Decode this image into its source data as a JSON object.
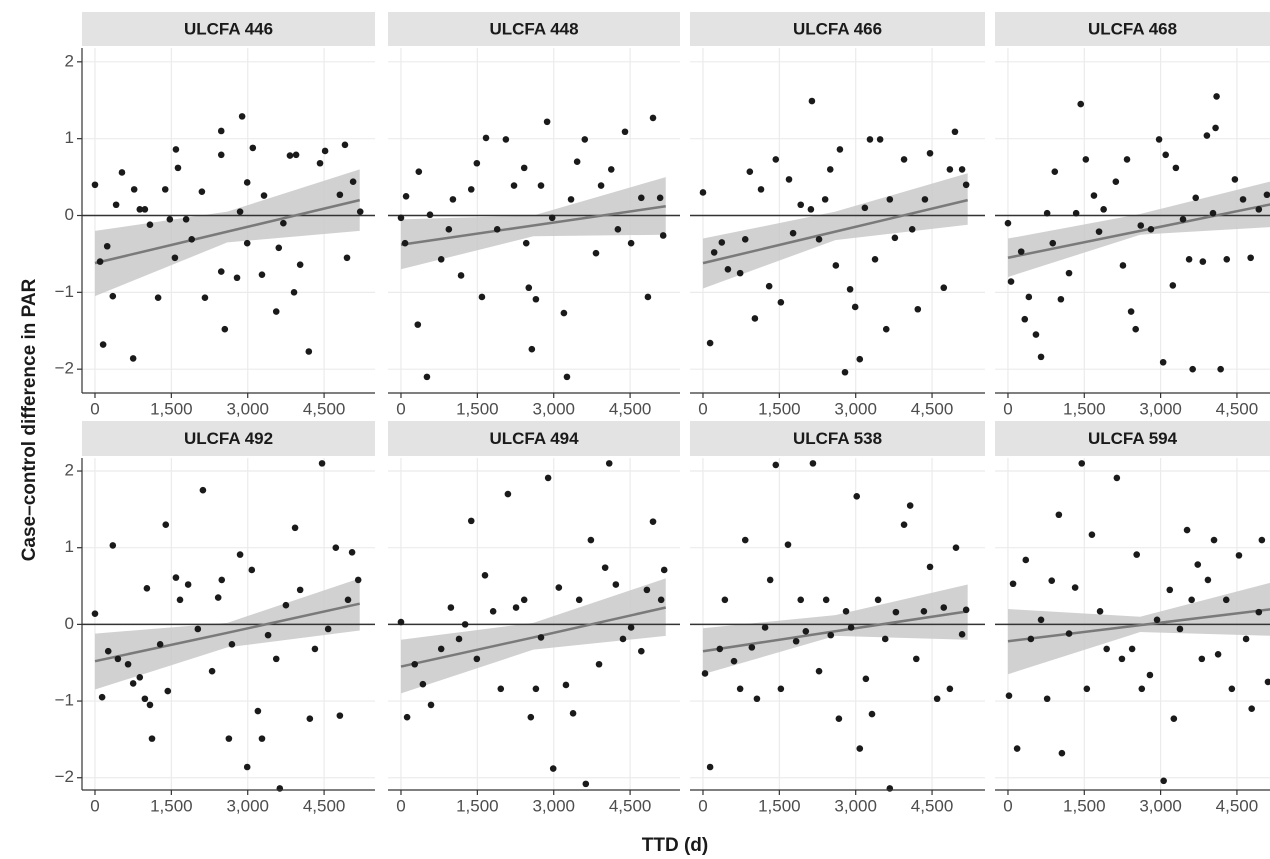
{
  "ylabel": "Case–control difference in PAR",
  "xlabel": "TTD (d)",
  "chart_data": [
    {
      "type": "scatter",
      "title": "ULCFA 446",
      "color": "#1a1a1a",
      "grid": true,
      "hline": 0,
      "y_tick_labels": true,
      "xlim": [
        -255,
        5500
      ],
      "ylim": [
        -2.31,
        2.18
      ],
      "xticks": [
        0,
        {
          "value": 1500,
          "label": "1,500"
        },
        {
          "value": 3000,
          "label": "3,000"
        },
        {
          "value": 4500,
          "label": "4,500"
        }
      ],
      "yticks": [
        {
          "value": -2,
          "label": "−2"
        },
        {
          "value": -1,
          "label": "−1"
        },
        0,
        1,
        2
      ],
      "x": [
        0,
        100,
        160,
        415,
        530,
        240,
        350,
        770,
        750,
        880,
        980,
        1080,
        1240,
        1380,
        1590,
        1630,
        1570,
        1470,
        1900,
        2100,
        2160,
        2480,
        2480,
        2550,
        2480,
        2790,
        2850,
        2890,
        2990,
        2990,
        3100,
        3280,
        3320,
        3560,
        3610,
        3830,
        3910,
        3950,
        4030,
        4200,
        4420,
        4520,
        4810,
        4910,
        4950,
        5070,
        5210,
        3700,
        1790
      ],
      "y": [
        0.4,
        -0.6,
        -1.68,
        0.14,
        0.56,
        -0.4,
        -1.05,
        0.34,
        -1.86,
        0.08,
        0.08,
        -0.12,
        -1.07,
        0.34,
        0.86,
        0.62,
        -0.55,
        -0.05,
        -0.31,
        0.31,
        -1.07,
        1.1,
        0.79,
        -1.48,
        -0.73,
        -0.81,
        0.05,
        1.29,
        0.43,
        -0.36,
        0.88,
        -0.77,
        0.26,
        -1.25,
        -0.42,
        0.78,
        -1.0,
        0.79,
        -0.64,
        -1.77,
        0.68,
        0.84,
        0.27,
        0.92,
        -0.55,
        0.44,
        0.05,
        -0.1,
        -0.05
      ],
      "fit": {
        "x": [
          0,
          2600,
          5200
        ],
        "y": [
          -0.62,
          -0.21,
          0.2
        ],
        "lower": [
          -1.05,
          -0.35,
          -0.2
        ],
        "upper": [
          -0.2,
          0.05,
          0.6
        ]
      },
      "fit_color": "#7a7a7a",
      "band_color": "#c9c9c9"
    },
    {
      "type": "scatter",
      "title": "ULCFA 448",
      "color": "#1a1a1a",
      "grid": true,
      "hline": 0,
      "y_tick_labels": false,
      "xlim": [
        -255,
        5480
      ],
      "ylim": [
        -2.31,
        2.18
      ],
      "xticks": [
        0,
        {
          "value": 1500,
          "label": "1,500"
        },
        {
          "value": 3000,
          "label": "3,000"
        },
        {
          "value": 4500,
          "label": "4,500"
        }
      ],
      "yticks": [
        {
          "value": -2,
          "label": "−2"
        },
        {
          "value": -1,
          "label": "−1"
        },
        0,
        1,
        2
      ],
      "x": [
        0,
        80,
        100,
        350,
        330,
        570,
        510,
        790,
        940,
        1020,
        1180,
        1380,
        1490,
        1590,
        1670,
        1890,
        2060,
        2220,
        2420,
        2460,
        2510,
        2570,
        2650,
        2750,
        2870,
        2970,
        3200,
        3260,
        3340,
        3460,
        3610,
        3830,
        3930,
        4130,
        4260,
        4400,
        4520,
        4720,
        4850,
        4950,
        5090,
        5150
      ],
      "y": [
        -0.03,
        -0.36,
        0.25,
        0.57,
        -1.42,
        0.01,
        -2.1,
        -0.57,
        -0.18,
        0.21,
        -0.78,
        0.34,
        0.68,
        -1.06,
        1.01,
        -0.18,
        0.99,
        0.39,
        0.62,
        -0.36,
        -0.94,
        -1.74,
        -1.09,
        0.39,
        1.22,
        -0.03,
        -1.27,
        -2.1,
        0.21,
        0.7,
        0.99,
        -0.49,
        0.39,
        0.6,
        -0.18,
        1.09,
        -0.36,
        0.23,
        -1.06,
        1.27,
        0.23,
        -0.26
      ],
      "fit": {
        "x": [
          0,
          2600,
          5200
        ],
        "y": [
          -0.38,
          -0.13,
          0.12
        ],
        "lower": [
          -0.7,
          -0.27,
          -0.25
        ],
        "upper": [
          -0.05,
          0,
          0.5
        ]
      },
      "fit_color": "#7a7a7a",
      "band_color": "#c9c9c9"
    },
    {
      "type": "scatter",
      "title": "ULCFA 466",
      "color": "#1a1a1a",
      "grid": true,
      "hline": 0,
      "y_tick_labels": false,
      "xlim": [
        -255,
        5540
      ],
      "ylim": [
        -2.31,
        2.18
      ],
      "xticks": [
        0,
        {
          "value": 1500,
          "label": "1,500"
        },
        {
          "value": 3000,
          "label": "3,000"
        },
        {
          "value": 4500,
          "label": "4,500"
        }
      ],
      "yticks": [
        {
          "value": -2,
          "label": "−2"
        },
        {
          "value": -1,
          "label": "−1"
        },
        0,
        1,
        2
      ],
      "x": [
        0,
        140,
        220,
        370,
        490,
        730,
        830,
        920,
        1020,
        1140,
        1300,
        1430,
        1530,
        1690,
        1770,
        1920,
        2120,
        2280,
        2400,
        2500,
        2610,
        2690,
        2790,
        2890,
        2990,
        3080,
        3180,
        3280,
        3380,
        3480,
        3600,
        3670,
        3770,
        3950,
        4110,
        4220,
        4360,
        4460,
        4730,
        4850,
        4950,
        5090,
        5170,
        2140
      ],
      "y": [
        0.3,
        -1.66,
        -0.48,
        -0.35,
        -0.7,
        -0.75,
        -0.31,
        0.57,
        -1.34,
        0.34,
        -0.92,
        0.73,
        -1.13,
        0.47,
        -0.23,
        0.14,
        0.08,
        -0.31,
        0.21,
        0.6,
        -0.65,
        0.86,
        -2.04,
        -0.96,
        -1.19,
        -1.87,
        0.1,
        0.99,
        -0.57,
        0.99,
        -1.48,
        0.21,
        -0.29,
        0.73,
        -0.18,
        -1.22,
        0.21,
        0.81,
        -0.94,
        0.6,
        1.09,
        0.6,
        0.4,
        1.49
      ],
      "fit": {
        "x": [
          0,
          2600,
          5200
        ],
        "y": [
          -0.62,
          -0.21,
          0.2
        ],
        "lower": [
          -0.95,
          -0.32,
          -0.12
        ],
        "upper": [
          -0.3,
          0.05,
          0.55
        ]
      },
      "fit_color": "#7a7a7a",
      "band_color": "#c9c9c9"
    },
    {
      "type": "scatter",
      "title": "ULCFA 468",
      "color": "#1a1a1a",
      "grid": true,
      "hline": 0,
      "y_tick_labels": false,
      "xlim": [
        -255,
        5150
      ],
      "ylim": [
        -2.31,
        2.18
      ],
      "xticks": [
        0,
        {
          "value": 1500,
          "label": "1,500"
        },
        {
          "value": 3000,
          "label": "3,000"
        },
        {
          "value": 4500,
          "label": "4,500"
        }
      ],
      "yticks": [
        {
          "value": -2,
          "label": "−2"
        },
        {
          "value": -1,
          "label": "−1"
        },
        0,
        1,
        2
      ],
      "x": [
        0,
        60,
        260,
        330,
        410,
        550,
        650,
        770,
        880,
        920,
        1040,
        1200,
        1340,
        1430,
        1530,
        1690,
        1790,
        1880,
        2120,
        2260,
        2340,
        2420,
        2510,
        2610,
        2810,
        2970,
        3050,
        3100,
        3240,
        3300,
        3440,
        3560,
        3630,
        3690,
        3830,
        3910,
        4030,
        4080,
        4180,
        4300,
        4460,
        4620,
        4770,
        4930,
        5090,
        4100
      ],
      "y": [
        -0.1,
        -0.86,
        -0.47,
        -1.35,
        -1.06,
        -1.55,
        -1.84,
        0.03,
        -0.36,
        0.57,
        -1.09,
        -0.75,
        0.03,
        1.45,
        0.73,
        0.26,
        -0.21,
        0.08,
        0.44,
        -0.65,
        0.73,
        -1.25,
        -1.48,
        -0.13,
        -0.18,
        0.99,
        -1.91,
        0.79,
        -0.91,
        0.62,
        -0.05,
        -0.57,
        -2.0,
        0.23,
        -0.6,
        1.04,
        0.03,
        1.14,
        -2.0,
        -0.57,
        0.47,
        0.21,
        -0.55,
        0.08,
        0.27,
        1.55
      ],
      "fit": {
        "x": [
          0,
          2600,
          5200
        ],
        "y": [
          -0.55,
          -0.2,
          0.15
        ],
        "lower": [
          -0.8,
          -0.25,
          -0.15
        ],
        "upper": [
          -0.3,
          0.02,
          0.45
        ]
      },
      "fit_color": "#7a7a7a",
      "band_color": "#c9c9c9"
    },
    {
      "type": "scatter",
      "title": "ULCFA 492",
      "color": "#1a1a1a",
      "grid": true,
      "hline": 0,
      "y_tick_labels": true,
      "xlim": [
        -255,
        5500
      ],
      "ylim": [
        -2.16,
        2.17
      ],
      "xticks": [
        0,
        {
          "value": 1500,
          "label": "1,500"
        },
        {
          "value": 3000,
          "label": "3,000"
        },
        {
          "value": 4500,
          "label": "4,500"
        }
      ],
      "yticks": [
        {
          "value": -2,
          "label": "−2"
        },
        {
          "value": -1,
          "label": "−1"
        },
        0,
        1,
        2
      ],
      "x": [
        0,
        140,
        350,
        260,
        450,
        650,
        750,
        880,
        980,
        1080,
        1120,
        1020,
        1280,
        1390,
        1430,
        1590,
        1670,
        1830,
        2020,
        2120,
        2300,
        2420,
        2490,
        2630,
        2690,
        2850,
        2990,
        3080,
        3200,
        3280,
        3400,
        3560,
        3630,
        3750,
        3930,
        4030,
        4220,
        4320,
        4460,
        4580,
        4730,
        4810,
        4970,
        5050,
        5170
      ],
      "y": [
        0.14,
        -0.95,
        1.03,
        -0.35,
        -0.45,
        -0.52,
        -0.77,
        -0.69,
        -0.97,
        -1.05,
        -1.49,
        0.47,
        -0.26,
        1.3,
        -0.87,
        0.61,
        0.32,
        0.52,
        -0.06,
        1.75,
        -0.61,
        0.35,
        0.58,
        -1.49,
        -0.26,
        0.91,
        -1.86,
        0.71,
        -1.13,
        -1.49,
        -0.14,
        -0.45,
        -2.14,
        0.25,
        1.26,
        0.45,
        -1.23,
        -0.32,
        2.1,
        -0.06,
        1.0,
        -1.19,
        0.32,
        0.94,
        0.58
      ],
      "fit": {
        "x": [
          0,
          2600,
          5200
        ],
        "y": [
          -0.48,
          -0.11,
          0.27
        ],
        "lower": [
          -0.85,
          -0.3,
          -0.08
        ],
        "upper": [
          -0.12,
          0.02,
          0.6
        ]
      },
      "fit_color": "#7a7a7a",
      "band_color": "#c9c9c9"
    },
    {
      "type": "scatter",
      "title": "ULCFA 494",
      "color": "#1a1a1a",
      "grid": true,
      "hline": 0,
      "y_tick_labels": false,
      "xlim": [
        -255,
        5480
      ],
      "ylim": [
        -2.16,
        2.17
      ],
      "xticks": [
        0,
        {
          "value": 1500,
          "label": "1,500"
        },
        {
          "value": 3000,
          "label": "3,000"
        },
        {
          "value": 4500,
          "label": "4,500"
        }
      ],
      "yticks": [
        {
          "value": -2,
          "label": "−2"
        },
        {
          "value": -1,
          "label": "−1"
        },
        0,
        1,
        2
      ],
      "x": [
        0,
        120,
        270,
        430,
        590,
        790,
        980,
        1140,
        1260,
        1380,
        1490,
        1650,
        1810,
        1960,
        2100,
        2260,
        2420,
        2550,
        2650,
        2750,
        2890,
        2990,
        3100,
        3240,
        3380,
        3500,
        3630,
        3730,
        3890,
        4010,
        4090,
        4220,
        4360,
        4520,
        4720,
        4830,
        4950,
        5110,
        5170
      ],
      "y": [
        0.03,
        -1.21,
        -0.52,
        -0.78,
        -1.05,
        -0.32,
        0.22,
        -0.19,
        0,
        1.35,
        -0.45,
        0.64,
        0.17,
        -0.84,
        1.7,
        0.22,
        0.32,
        -1.21,
        -0.84,
        -0.17,
        1.91,
        -1.88,
        0.48,
        -0.79,
        -1.16,
        0.32,
        -2.08,
        1.1,
        -0.52,
        0.74,
        2.1,
        0.52,
        -0.19,
        -0.04,
        -0.35,
        0.45,
        1.34,
        0.32,
        0.71
      ],
      "fit": {
        "x": [
          0,
          2600,
          5200
        ],
        "y": [
          -0.55,
          -0.17,
          0.22
        ],
        "lower": [
          -0.9,
          -0.33,
          -0.15
        ],
        "upper": [
          -0.2,
          0.02,
          0.6
        ]
      },
      "fit_color": "#7a7a7a",
      "band_color": "#c9c9c9"
    },
    {
      "type": "scatter",
      "title": "ULCFA 538",
      "color": "#1a1a1a",
      "grid": true,
      "hline": 0,
      "y_tick_labels": false,
      "xlim": [
        -255,
        5540
      ],
      "ylim": [
        -2.16,
        2.17
      ],
      "xticks": [
        0,
        {
          "value": 1500,
          "label": "1,500"
        },
        {
          "value": 3000,
          "label": "3,000"
        },
        {
          "value": 4500,
          "label": "4,500"
        }
      ],
      "yticks": [
        {
          "value": -2,
          "label": "−2"
        },
        {
          "value": -1,
          "label": "−1"
        },
        0,
        1,
        2
      ],
      "x": [
        40,
        140,
        330,
        430,
        610,
        730,
        830,
        960,
        1060,
        1220,
        1320,
        1430,
        1530,
        1670,
        1830,
        1920,
        2020,
        2160,
        2280,
        2420,
        2510,
        2670,
        2810,
        2910,
        3020,
        3080,
        3200,
        3320,
        3440,
        3580,
        3670,
        3790,
        3950,
        4070,
        4190,
        4340,
        4460,
        4600,
        4730,
        4850,
        4970,
        5090,
        5170
      ],
      "y": [
        -0.64,
        -1.86,
        -0.32,
        0.32,
        -0.48,
        -0.84,
        1.1,
        -0.3,
        -0.97,
        -0.04,
        0.58,
        2.08,
        -0.84,
        1.04,
        -0.22,
        0.32,
        -0.09,
        2.1,
        -0.61,
        0.32,
        -0.14,
        -1.23,
        0.17,
        -0.04,
        1.67,
        -1.62,
        -0.71,
        -1.17,
        0.32,
        -0.19,
        -2.14,
        0.16,
        1.3,
        1.55,
        -0.45,
        0.17,
        0.75,
        -0.97,
        0.22,
        -0.84,
        1.0,
        -0.13,
        0.19
      ],
      "fit": {
        "x": [
          0,
          2600,
          5200
        ],
        "y": [
          -0.35,
          -0.09,
          0.17
        ],
        "lower": [
          -0.65,
          -0.15,
          -0.2
        ],
        "upper": [
          -0.05,
          0.12,
          0.52
        ]
      },
      "fit_color": "#7a7a7a",
      "band_color": "#c9c9c9"
    },
    {
      "type": "scatter",
      "title": "ULCFA 594",
      "color": "#1a1a1a",
      "grid": true,
      "hline": 0,
      "y_tick_labels": false,
      "xlim": [
        -255,
        5150
      ],
      "ylim": [
        -2.16,
        2.17
      ],
      "xticks": [
        0,
        {
          "value": 1500,
          "label": "1,500"
        },
        {
          "value": 3000,
          "label": "3,000"
        },
        {
          "value": 4500,
          "label": "4,500"
        }
      ],
      "yticks": [
        {
          "value": -2,
          "label": "−2"
        },
        {
          "value": -1,
          "label": "−1"
        },
        0,
        1,
        2
      ],
      "x": [
        20,
        100,
        180,
        350,
        450,
        650,
        770,
        860,
        1000,
        1060,
        1200,
        1320,
        1450,
        1550,
        1650,
        1810,
        1940,
        2140,
        2240,
        2440,
        2530,
        2630,
        2790,
        2930,
        3060,
        3180,
        3260,
        3380,
        3520,
        3610,
        3730,
        3810,
        3930,
        4050,
        4130,
        4290,
        4400,
        4540,
        4680,
        4790,
        4930,
        4990,
        5110
      ],
      "y": [
        -0.93,
        0.53,
        -1.62,
        0.84,
        -0.19,
        0.06,
        -0.97,
        0.57,
        1.43,
        -1.68,
        -0.12,
        0.48,
        2.1,
        -0.84,
        1.17,
        0.17,
        -0.32,
        1.91,
        -0.45,
        -0.32,
        0.91,
        -0.84,
        -0.66,
        0.06,
        -2.04,
        0.45,
        -1.23,
        -0.06,
        1.23,
        0.32,
        0.78,
        -0.45,
        0.58,
        1.1,
        -0.39,
        0.32,
        -0.84,
        0.9,
        -0.19,
        -1.1,
        0.16,
        1.1,
        -0.75
      ],
      "fit": {
        "x": [
          0,
          2600,
          5200
        ],
        "y": [
          -0.22,
          -0.01,
          0.2
        ],
        "lower": [
          -0.65,
          -0.1,
          -0.15
        ],
        "upper": [
          0.2,
          0.1,
          0.55
        ]
      },
      "fit_color": "#7a7a7a",
      "band_color": "#c9c9c9"
    }
  ]
}
